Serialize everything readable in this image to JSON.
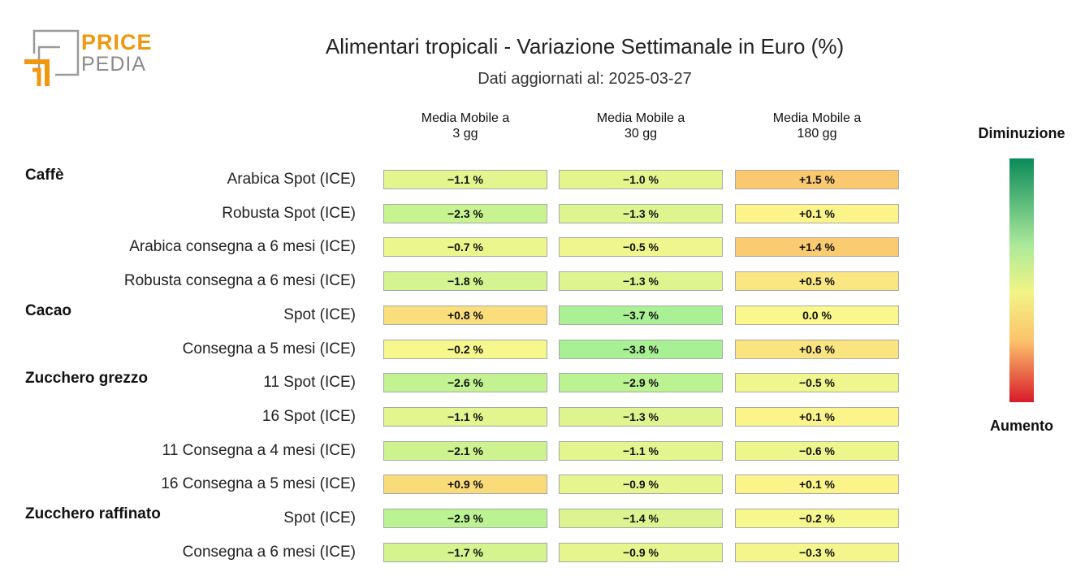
{
  "logo": {
    "line1": "PRICE",
    "line2": "PEDIA"
  },
  "title": "Alimentari tropicali - Variazione Settimanale in Euro (%)",
  "subtitle": "Dati aggiornati al: 2025-03-27",
  "legend": {
    "top": "Diminuzione",
    "bottom": "Aumento"
  },
  "colors": {
    "orange": "#f0960f",
    "gray": "#8a8a8a"
  },
  "chart_data": {
    "type": "table",
    "columns": [
      "Media Mobile a\n3 gg",
      "Media Mobile a\n30 gg",
      "Media Mobile a\n180 gg"
    ],
    "groups": [
      {
        "name": "Caffè",
        "rows": [
          {
            "label": "Arabica Spot (ICE)",
            "values": [
              -1.1,
              -1.0,
              1.5
            ],
            "texts": [
              "−1.1 %",
              "−1.0 %",
              "+1.5 %"
            ]
          },
          {
            "label": "Robusta Spot (ICE)",
            "values": [
              -2.3,
              -1.3,
              0.1
            ],
            "texts": [
              "−2.3 %",
              "−1.3 %",
              "+0.1 %"
            ]
          },
          {
            "label": "Arabica consegna a 6 mesi (ICE)",
            "values": [
              -0.7,
              -0.5,
              1.4
            ],
            "texts": [
              "−0.7 %",
              "−0.5 %",
              "+1.4 %"
            ]
          },
          {
            "label": "Robusta consegna a 6 mesi (ICE)",
            "values": [
              -1.8,
              -1.3,
              0.5
            ],
            "texts": [
              "−1.8 %",
              "−1.3 %",
              "+0.5 %"
            ]
          }
        ]
      },
      {
        "name": "Cacao",
        "rows": [
          {
            "label": "Spot (ICE)",
            "values": [
              0.8,
              -3.7,
              0.0
            ],
            "texts": [
              "+0.8 %",
              "−3.7 %",
              "0.0 %"
            ]
          },
          {
            "label": "Consegna a 5 mesi (ICE)",
            "values": [
              -0.2,
              -3.8,
              0.6
            ],
            "texts": [
              "−0.2 %",
              "−3.8 %",
              "+0.6 %"
            ]
          }
        ]
      },
      {
        "name": "Zucchero grezzo",
        "rows": [
          {
            "label": "11 Spot (ICE)",
            "values": [
              -2.6,
              -2.9,
              -0.5
            ],
            "texts": [
              "−2.6 %",
              "−2.9 %",
              "−0.5 %"
            ]
          },
          {
            "label": "16 Spot (ICE)",
            "values": [
              -1.1,
              -1.3,
              0.1
            ],
            "texts": [
              "−1.1 %",
              "−1.3 %",
              "+0.1 %"
            ]
          },
          {
            "label": "11 Consegna a 4 mesi (ICE)",
            "values": [
              -2.1,
              -1.1,
              -0.6
            ],
            "texts": [
              "−2.1 %",
              "−1.1 %",
              "−0.6 %"
            ]
          },
          {
            "label": "16 Consegna a 5 mesi (ICE)",
            "values": [
              0.9,
              -0.9,
              0.1
            ],
            "texts": [
              "+0.9 %",
              "−0.9 %",
              "+0.1 %"
            ]
          }
        ]
      },
      {
        "name": "Zucchero raffinato",
        "rows": [
          {
            "label": "Spot (ICE)",
            "values": [
              -2.9,
              -1.4,
              -0.2
            ],
            "texts": [
              "−2.9 %",
              "−1.4 %",
              "−0.2 %"
            ]
          },
          {
            "label": "Consegna a 6 mesi (ICE)",
            "values": [
              -1.7,
              -0.9,
              -0.3
            ],
            "texts": [
              "−1.7 %",
              "−0.9 %",
              "−0.3 %"
            ]
          }
        ]
      }
    ]
  }
}
